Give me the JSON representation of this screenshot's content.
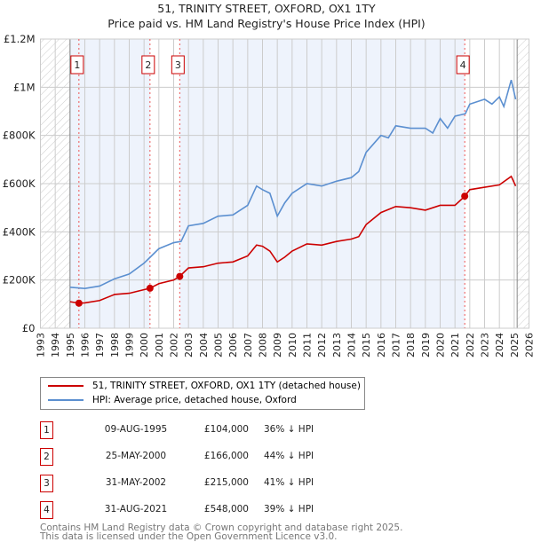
{
  "chart_data": {
    "type": "line",
    "title": "51, TRINITY STREET, OXFORD, OX1 1TY",
    "subtitle": "Price paid vs. HM Land Registry's House Price Index (HPI)",
    "xlim": [
      1993,
      2026
    ],
    "ylim": [
      0,
      1200000
    ],
    "x_ticks": [
      "1993",
      "1994",
      "1995",
      "1996",
      "1997",
      "1998",
      "1999",
      "2000",
      "2001",
      "2002",
      "2003",
      "2004",
      "2005",
      "2006",
      "2007",
      "2008",
      "2009",
      "2010",
      "2011",
      "2012",
      "2013",
      "2014",
      "2015",
      "2016",
      "2017",
      "2018",
      "2019",
      "2020",
      "2021",
      "2022",
      "2023",
      "2024",
      "2025",
      "2026"
    ],
    "y_ticks": [
      {
        "v": 0,
        "label": "£0"
      },
      {
        "v": 200000,
        "label": "£200K"
      },
      {
        "v": 400000,
        "label": "£400K"
      },
      {
        "v": 600000,
        "label": "£600K"
      },
      {
        "v": 800000,
        "label": "£800K"
      },
      {
        "v": 1000000,
        "label": "£1M"
      },
      {
        "v": 1200000,
        "label": "£1.2M"
      }
    ],
    "grid": true,
    "series": [
      {
        "name": "51, TRINITY STREET, OXFORD, OX1 1TY (detached house)",
        "color": "#cc0000",
        "x": [
          1995,
          1995.6,
          1996,
          1997,
          1998,
          1999,
          2000.4,
          2001,
          2002,
          2002.4,
          2003,
          2004,
          2005,
          2006,
          2007,
          2007.6,
          2008,
          2008.5,
          2009,
          2009.5,
          2010,
          2011,
          2012,
          2013,
          2014,
          2014.5,
          2015,
          2016,
          2017,
          2018,
          2019,
          2020,
          2021,
          2021.67,
          2022,
          2023,
          2024,
          2024.8,
          2025.1
        ],
        "y": [
          110000,
          104000,
          105000,
          115000,
          140000,
          145000,
          166000,
          185000,
          200000,
          215000,
          250000,
          255000,
          270000,
          275000,
          300000,
          345000,
          340000,
          320000,
          275000,
          295000,
          320000,
          350000,
          345000,
          360000,
          370000,
          380000,
          430000,
          480000,
          505000,
          500000,
          490000,
          510000,
          510000,
          548000,
          575000,
          585000,
          595000,
          630000,
          590000
        ]
      },
      {
        "name": "HPI: Average price, detached house, Oxford",
        "color": "#5b8fd0",
        "x": [
          1995,
          1996,
          1997,
          1998,
          1999,
          2000,
          2000.5,
          2001,
          2002,
          2002.5,
          2003,
          2004,
          2005,
          2006,
          2007,
          2007.6,
          2008,
          2008.5,
          2009,
          2009.5,
          2010,
          2011,
          2012,
          2013,
          2014,
          2014.5,
          2015,
          2016,
          2016.5,
          2017,
          2018,
          2019,
          2019.5,
          2020,
          2020.5,
          2021,
          2021.7,
          2022,
          2023,
          2023.5,
          2024,
          2024.3,
          2024.8,
          2025.1
        ],
        "y": [
          170000,
          165000,
          175000,
          205000,
          225000,
          270000,
          300000,
          330000,
          355000,
          360000,
          425000,
          435000,
          465000,
          470000,
          510000,
          590000,
          575000,
          560000,
          465000,
          520000,
          560000,
          600000,
          590000,
          610000,
          625000,
          650000,
          730000,
          800000,
          790000,
          840000,
          830000,
          830000,
          810000,
          870000,
          830000,
          880000,
          890000,
          930000,
          950000,
          930000,
          960000,
          920000,
          1030000,
          950000
        ]
      }
    ],
    "sales": [
      {
        "n": "1",
        "x": 1995.6,
        "date": "09-AUG-1995",
        "price": "£104,000",
        "value": 104000,
        "pct": "36% ↓ HPI"
      },
      {
        "n": "2",
        "x": 2000.4,
        "date": "25-MAY-2000",
        "price": "£166,000",
        "value": 166000,
        "pct": "44% ↓ HPI"
      },
      {
        "n": "3",
        "x": 2002.41,
        "date": "31-MAY-2002",
        "price": "£215,000",
        "value": 215000,
        "pct": "41% ↓ HPI"
      },
      {
        "n": "4",
        "x": 2021.66,
        "date": "31-AUG-2021",
        "price": "£548,000",
        "value": 548000,
        "pct": "39% ↓ HPI"
      }
    ],
    "data_end": 2025.2
  },
  "legend": {
    "property": "51, TRINITY STREET, OXFORD, OX1 1TY (detached house)",
    "hpi": "HPI: Average price, detached house, Oxford"
  },
  "footer": {
    "line1": "Contains HM Land Registry data © Crown copyright and database right 2025.",
    "line2": "This data is licensed under the Open Government Licence v3.0."
  }
}
